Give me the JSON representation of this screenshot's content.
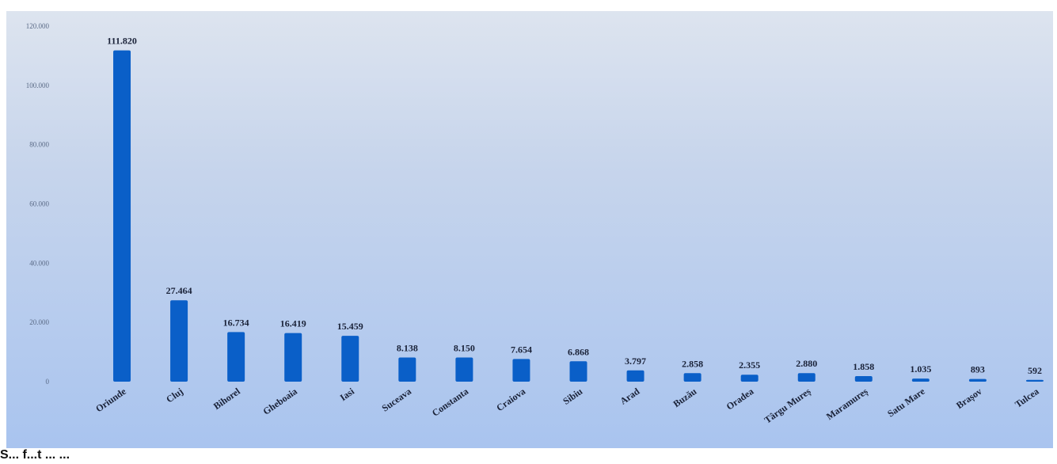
{
  "chart_data": {
    "type": "bar",
    "title": "",
    "xlabel": "",
    "ylabel": "",
    "ylim": [
      0,
      120000
    ],
    "y_ticks": [
      "0",
      "20.000",
      "40.000",
      "60.000",
      "80.000",
      "100.000",
      "120.000"
    ],
    "y_tick_values": [
      0,
      20000,
      40000,
      60000,
      80000,
      100000,
      120000
    ],
    "categories": [
      "Oriunde",
      "Cluj",
      "Bihorel",
      "Gheboaia",
      "Iasi",
      "Suceava",
      "Constanta",
      "Craiova",
      "Sibiu",
      "Arad",
      "Buzău",
      "Oradea",
      "Târgu Mureș",
      "Maramureș",
      "Satu Mare",
      "Brașov",
      "Tulcea"
    ],
    "values": [
      111820,
      27464,
      16734,
      16419,
      15459,
      8138,
      8150,
      7654,
      6868,
      3797,
      2858,
      2355,
      2880,
      1858,
      1035,
      893,
      592
    ],
    "value_labels": [
      "111.820",
      "27.464",
      "16.734",
      "16.419",
      "15.459",
      "8.138",
      "8.150",
      "7.654",
      "6.868",
      "3.797",
      "2.858",
      "2.355",
      "2.880",
      "1.858",
      "1.035",
      "893",
      "592"
    ],
    "bar_color": "#0a5fc8",
    "grid": false,
    "legend": "none"
  },
  "caption": "S... f...t ... ..."
}
